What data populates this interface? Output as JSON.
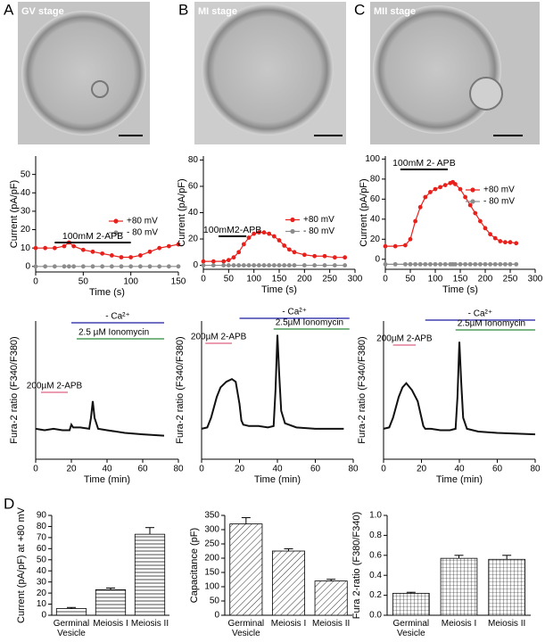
{
  "panel_labels": [
    "A",
    "B",
    "C",
    "D"
  ],
  "image_labels": [
    "GV stage",
    "MI stage",
    "MII stage"
  ],
  "chart_data": [
    {
      "type": "line",
      "x_label": "Time (s)",
      "y_label": "Current (pA/pF)",
      "legend": "center right",
      "x": [
        0,
        10,
        20,
        30,
        35,
        40,
        50,
        60,
        70,
        80,
        90,
        100,
        110,
        120,
        130,
        140,
        150
      ],
      "series": [
        {
          "name": "+80 mV",
          "color": "#e8201c",
          "markers": true,
          "values": [
            10,
            10,
            10,
            11,
            13,
            11,
            9,
            8,
            7,
            6,
            5,
            5,
            6,
            8,
            10,
            11,
            12
          ]
        },
        {
          "name": "- 80 mV",
          "color": "#8c8c8c",
          "markers": true,
          "values": [
            0,
            0,
            0,
            0,
            0,
            0,
            0,
            0,
            0,
            0,
            0,
            0,
            0,
            0,
            0,
            0,
            0
          ]
        }
      ],
      "xlim": [
        0,
        150
      ],
      "xticks": [
        0,
        50,
        100,
        150
      ],
      "ylim": [
        -3,
        60
      ],
      "yticks": [
        0,
        10,
        20,
        30,
        40,
        50
      ],
      "annotations": [
        {
          "text": "100mM 2-APB",
          "range": [
            20,
            100
          ],
          "color": "#000000"
        }
      ]
    },
    {
      "type": "line",
      "x_label": "Time (s)",
      "y_label": "Current (pA/pF)",
      "legend": "center right",
      "x": [
        0,
        20,
        40,
        50,
        60,
        70,
        80,
        90,
        100,
        110,
        120,
        130,
        140,
        150,
        160,
        170,
        180,
        200,
        220,
        240,
        260,
        280
      ],
      "series": [
        {
          "name": "+80 mV",
          "color": "#e8201c",
          "markers": true,
          "values": [
            3,
            3,
            3,
            4,
            6,
            10,
            16,
            21,
            24,
            25,
            25,
            24,
            22,
            19,
            15,
            12,
            10,
            8,
            7,
            7,
            6,
            6
          ]
        },
        {
          "name": "- 80 mV",
          "color": "#8c8c8c",
          "markers": true,
          "values": [
            0,
            0,
            0,
            0,
            0,
            0,
            0,
            0,
            0,
            0,
            0,
            0,
            0,
            0,
            0,
            0,
            0,
            0,
            0,
            0,
            0,
            0
          ]
        }
      ],
      "xlim": [
        0,
        300
      ],
      "xticks": [
        0,
        50,
        100,
        150,
        200,
        250,
        300
      ],
      "ylim": [
        -3,
        83
      ],
      "yticks": [
        0,
        20,
        40,
        60,
        80
      ],
      "annotations": [
        {
          "text": "100mM2-APB",
          "range": [
            30,
            85
          ],
          "color": "#000000"
        }
      ]
    },
    {
      "type": "line",
      "x_label": "Time (s)",
      "y_label": "Current (pA/pF)",
      "legend": "upper right",
      "x": [
        0,
        20,
        40,
        50,
        60,
        70,
        80,
        90,
        100,
        110,
        120,
        130,
        135,
        140,
        150,
        160,
        170,
        180,
        190,
        200,
        210,
        220,
        230,
        240,
        250,
        262
      ],
      "series": [
        {
          "name": "+80 mV",
          "color": "#e8201c",
          "markers": true,
          "values": [
            13,
            13,
            14,
            20,
            38,
            52,
            62,
            67,
            70,
            72,
            74,
            76,
            77,
            75,
            70,
            62,
            54,
            46,
            38,
            31,
            25,
            21,
            18,
            17,
            17,
            16
          ]
        },
        {
          "name": "- 80 mV",
          "color": "#8c8c8c",
          "markers": true,
          "values": [
            -5,
            -5,
            -5,
            -5,
            -5,
            -5,
            -5,
            -5,
            -5,
            -5,
            -5,
            -5,
            -5,
            -5,
            -5,
            -5,
            -5,
            -5,
            -5,
            -5,
            -5,
            -5,
            -5,
            -5,
            -5,
            -5
          ]
        }
      ],
      "xlim": [
        0,
        300
      ],
      "xticks": [
        0,
        50,
        100,
        150,
        200,
        250,
        300
      ],
      "ylim": [
        -10,
        103
      ],
      "yticks": [
        0,
        20,
        40,
        60,
        80,
        100
      ],
      "annotations": [
        {
          "text": "100mM  2- APB",
          "range": [
            30,
            125
          ],
          "color": "#000000"
        }
      ]
    },
    {
      "type": "line",
      "x_label": "Time (min)",
      "y_label": "Fura-2 ratio (F340/F380)",
      "x": [
        0,
        5,
        10,
        15,
        19,
        20,
        21,
        25,
        30,
        31,
        32,
        33,
        35,
        40,
        50,
        60,
        72
      ],
      "series": [
        {
          "color": "#111111",
          "values": [
            0.22,
            0.21,
            0.22,
            0.21,
            0.21,
            0.25,
            0.23,
            0.23,
            0.22,
            0.3,
            0.42,
            0.3,
            0.22,
            0.21,
            0.19,
            0.18,
            0.17
          ]
        }
      ],
      "xlim": [
        0,
        80
      ],
      "xticks": [
        0,
        20,
        40,
        60,
        80
      ],
      "ylim": [
        0,
        1.0
      ],
      "annotations": [
        {
          "text": "200µM 2-APB",
          "range": [
            3,
            18
          ],
          "color": "#e06080"
        },
        {
          "text": "- Ca²⁺",
          "range": [
            20,
            72
          ],
          "color": "#1a1aa0"
        },
        {
          "text": "2.5 µM Ionomycin",
          "range": [
            23,
            72
          ],
          "color": "#2a8a3a"
        }
      ]
    },
    {
      "type": "line",
      "x_label": "Time (min)",
      "y_label": "Fura-2 ratio (F340/F380)",
      "x": [
        0,
        3,
        5,
        8,
        10,
        13,
        16,
        18,
        20,
        21,
        22,
        25,
        30,
        35,
        38,
        39,
        40,
        41,
        42,
        44,
        50,
        60,
        75
      ],
      "series": [
        {
          "color": "#111111",
          "values": [
            0.22,
            0.23,
            0.3,
            0.45,
            0.52,
            0.56,
            0.58,
            0.56,
            0.4,
            0.28,
            0.25,
            0.24,
            0.24,
            0.23,
            0.24,
            0.5,
            0.9,
            0.6,
            0.35,
            0.26,
            0.23,
            0.22,
            0.22
          ]
        }
      ],
      "xlim": [
        0,
        80
      ],
      "xticks": [
        0,
        20,
        40,
        60,
        80
      ],
      "ylim": [
        0,
        1.0
      ],
      "annotations": [
        {
          "text": "200µM 2-APB",
          "range": [
            2,
            16
          ],
          "color": "#e06080"
        },
        {
          "text": "- Ca²⁺",
          "range": [
            20,
            78
          ],
          "color": "#1a1aa0"
        },
        {
          "text": "2.5µM Ionomycin",
          "range": [
            38,
            78
          ],
          "color": "#2a8a3a"
        }
      ]
    },
    {
      "type": "line",
      "x_label": "Time (min)",
      "y_label": "Fura-2 ratio (F340/F380)",
      "x": [
        0,
        3,
        5,
        8,
        10,
        12,
        15,
        18,
        20,
        21,
        22,
        25,
        30,
        35,
        38,
        39,
        40,
        41,
        42,
        44,
        50,
        60,
        80
      ],
      "series": [
        {
          "color": "#111111",
          "values": [
            0.22,
            0.23,
            0.3,
            0.45,
            0.52,
            0.55,
            0.5,
            0.42,
            0.3,
            0.24,
            0.22,
            0.22,
            0.21,
            0.21,
            0.22,
            0.45,
            0.85,
            0.55,
            0.3,
            0.22,
            0.2,
            0.19,
            0.18
          ]
        }
      ],
      "xlim": [
        0,
        80
      ],
      "xticks": [
        0,
        20,
        40,
        60,
        80
      ],
      "ylim": [
        0,
        1.0
      ],
      "annotations": [
        {
          "text": "200µM 2-APB",
          "range": [
            5,
            17
          ],
          "color": "#e06080"
        },
        {
          "text": "- Ca²⁺",
          "range": [
            22,
            80
          ],
          "color": "#1a1aa0"
        },
        {
          "text": "2.5µM Ionomycin",
          "range": [
            38,
            80
          ],
          "color": "#2a8a3a"
        }
      ]
    },
    {
      "type": "bar",
      "y_label": "Current (pA/pF) at +80 mV",
      "pattern": "horizontal",
      "categories": [
        "Germinal Vesicle",
        "Meiosis I",
        "Meiosis II"
      ],
      "values": [
        6,
        23,
        73
      ],
      "errors": [
        1,
        1.5,
        6
      ],
      "ylim": [
        0,
        90
      ],
      "yticks": [
        0,
        10,
        20,
        30,
        40,
        50,
        60,
        70,
        80,
        90
      ]
    },
    {
      "type": "bar",
      "y_label": "Capacitance (pF)",
      "pattern": "diagonal",
      "categories": [
        "Germinal Vesicle",
        "Meiosis I",
        "Meiosis II"
      ],
      "values": [
        320,
        225,
        120
      ],
      "errors": [
        22,
        8,
        6
      ],
      "ylim": [
        0,
        350
      ],
      "yticks": [
        0,
        50,
        100,
        150,
        200,
        250,
        300,
        350
      ]
    },
    {
      "type": "bar",
      "y_label": "Fura 2-ratio (F380/F340)",
      "pattern": "grid",
      "categories": [
        "Germinal Vesicle",
        "Meiosis I",
        "Meiosis II"
      ],
      "values": [
        0.22,
        0.57,
        0.56
      ],
      "errors": [
        0.01,
        0.03,
        0.04
      ],
      "ylim": [
        0,
        1.0
      ],
      "yticks": [
        {
          "value": 0,
          "label": "0.0"
        },
        0.2,
        0.4,
        0.6,
        0.8,
        {
          "value": 1.0,
          "label": "1.0"
        }
      ]
    }
  ]
}
